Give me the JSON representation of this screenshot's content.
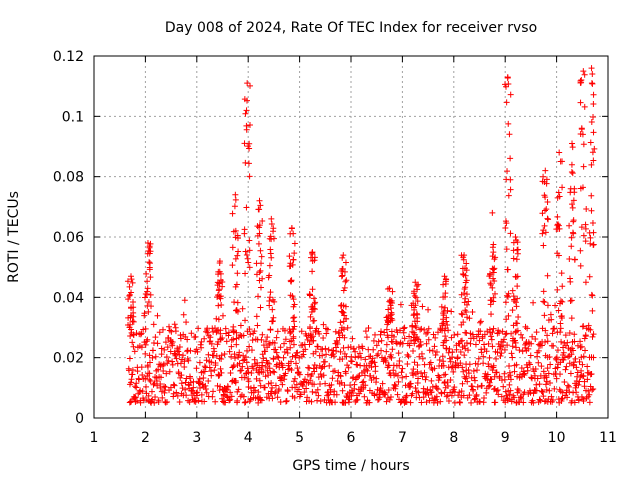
{
  "chart_data": {
    "type": "scatter",
    "title": "Day 008 of 2024, Rate Of TEC Index for receiver rvso",
    "xlabel": "GPS time / hours",
    "ylabel": "ROTI / TECUs",
    "xlim": [
      1,
      11
    ],
    "ylim": [
      0,
      0.12
    ],
    "xticks": [
      1,
      2,
      3,
      4,
      5,
      6,
      7,
      8,
      9,
      10,
      11
    ],
    "yticks": [
      0,
      0.02,
      0.04,
      0.06,
      0.08,
      0.1,
      0.12
    ],
    "xtick_labels": [
      "1",
      "2",
      "3",
      "4",
      "5",
      "6",
      "7",
      "8",
      "9",
      "10",
      "11"
    ],
    "ytick_labels": [
      "0",
      "0.02",
      "0.04",
      "0.06",
      "0.08",
      "0.1",
      "0.12"
    ],
    "grid": true,
    "marker": "plus",
    "series_color": "#ff0000",
    "x_data_range": [
      1.68,
      10.72
    ],
    "baseline_band": [
      0.005,
      0.03
    ],
    "peaks": [
      {
        "x": 1.72,
        "y": 0.047
      },
      {
        "x": 2.05,
        "y": 0.058
      },
      {
        "x": 3.45,
        "y": 0.052
      },
      {
        "x": 3.75,
        "y": 0.074
      },
      {
        "x": 3.98,
        "y": 0.111
      },
      {
        "x": 4.22,
        "y": 0.072
      },
      {
        "x": 4.45,
        "y": 0.066
      },
      {
        "x": 4.85,
        "y": 0.063
      },
      {
        "x": 5.25,
        "y": 0.055
      },
      {
        "x": 5.85,
        "y": 0.054
      },
      {
        "x": 6.75,
        "y": 0.043
      },
      {
        "x": 7.25,
        "y": 0.045
      },
      {
        "x": 7.82,
        "y": 0.047
      },
      {
        "x": 8.2,
        "y": 0.054
      },
      {
        "x": 8.75,
        "y": 0.068
      },
      {
        "x": 9.05,
        "y": 0.113
      },
      {
        "x": 9.2,
        "y": 0.06
      },
      {
        "x": 9.78,
        "y": 0.082
      },
      {
        "x": 10.05,
        "y": 0.088
      },
      {
        "x": 10.3,
        "y": 0.091
      },
      {
        "x": 10.52,
        "y": 0.115
      },
      {
        "x": 10.68,
        "y": 0.116
      }
    ]
  }
}
